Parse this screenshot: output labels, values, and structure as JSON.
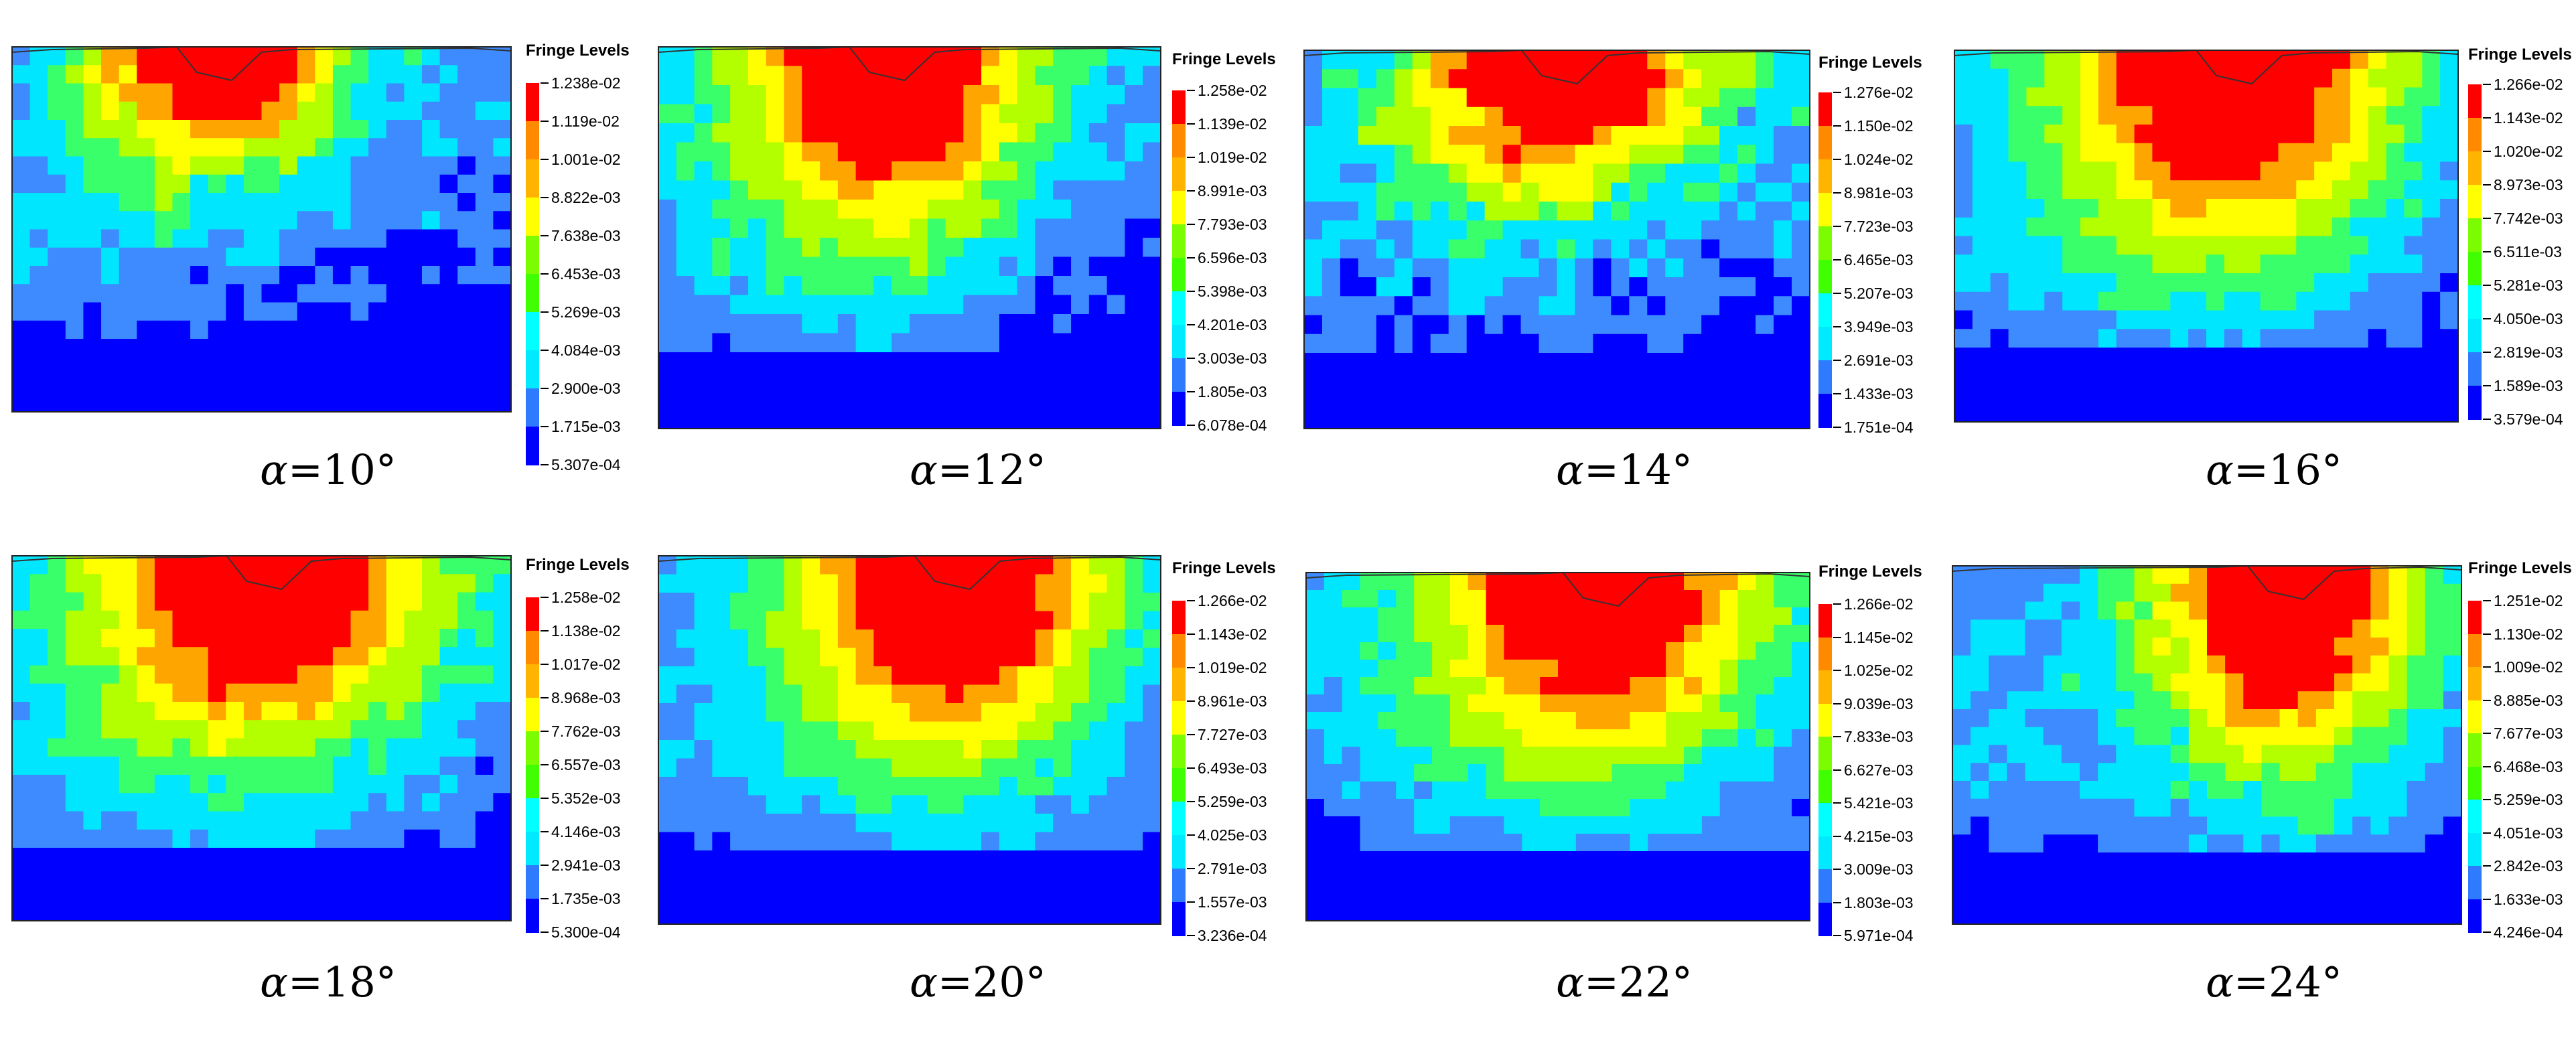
{
  "colors": {
    "fringe_scale": [
      "#0000ff",
      "#2f7bff",
      "#00eaff",
      "#00ffff",
      "#3fff00",
      "#7cfc00",
      "#ffff00",
      "#ffb400",
      "#ff8a00",
      "#ff0000"
    ],
    "palette_low_to_high": [
      "#0000ff",
      "#3d8bff",
      "#00e6ff",
      "#39ff6b",
      "#b3ff00",
      "#ffff00",
      "#ffa500",
      "#ff0000"
    ]
  },
  "legend_title": "Fringe Levels",
  "panels": [
    {
      "caption_symbol": "α",
      "caption_value": "=10°",
      "levels": [
        "1.238e-02",
        "1.119e-02",
        "1.001e-02",
        "8.822e-03",
        "7.638e-03",
        "6.453e-03",
        "5.269e-03",
        "4.084e-03",
        "2.900e-03",
        "1.715e-03",
        "5.307e-04"
      ],
      "seed": 11,
      "hot_center": 0.4,
      "hot_width": 0.24,
      "hot_depth": 0.34,
      "noise": 0.3
    },
    {
      "caption_symbol": "α",
      "caption_value": "=12°",
      "levels": [
        "1.258e-02",
        "1.139e-02",
        "1.019e-02",
        "8.991e-03",
        "7.793e-03",
        "6.596e-03",
        "5.398e-03",
        "4.201e-03",
        "3.003e-03",
        "1.805e-03",
        "6.078e-04"
      ],
      "seed": 23,
      "hot_center": 0.45,
      "hot_width": 0.28,
      "hot_depth": 0.55,
      "noise": 0.22
    },
    {
      "caption_symbol": "α",
      "caption_value": "=14°",
      "levels": [
        "1.276e-02",
        "1.150e-02",
        "1.024e-02",
        "8.981e-03",
        "7.723e-03",
        "6.465e-03",
        "5.207e-03",
        "3.949e-03",
        "2.691e-03",
        "1.433e-03",
        "1.751e-04"
      ],
      "seed": 37,
      "hot_center": 0.5,
      "hot_width": 0.3,
      "hot_depth": 0.4,
      "noise": 0.38
    },
    {
      "caption_symbol": "α",
      "caption_value": "=16°",
      "levels": [
        "1.266e-02",
        "1.143e-02",
        "1.020e-02",
        "8.973e-03",
        "7.742e-03",
        "6.511e-03",
        "5.281e-03",
        "4.050e-03",
        "2.819e-03",
        "1.589e-03",
        "3.579e-04"
      ],
      "seed": 41,
      "hot_center": 0.55,
      "hot_width": 0.32,
      "hot_depth": 0.62,
      "noise": 0.18
    },
    {
      "caption_symbol": "α",
      "caption_value": "=18°",
      "levels": [
        "1.258e-02",
        "1.138e-02",
        "1.017e-02",
        "8.968e-03",
        "7.762e-03",
        "6.557e-03",
        "5.352e-03",
        "4.146e-03",
        "2.941e-03",
        "1.735e-03",
        "5.300e-04"
      ],
      "seed": 53,
      "hot_center": 0.5,
      "hot_width": 0.34,
      "hot_depth": 0.58,
      "noise": 0.24
    },
    {
      "caption_symbol": "α",
      "caption_value": "=20°",
      "levels": [
        "1.266e-02",
        "1.143e-02",
        "1.019e-02",
        "8.961e-03",
        "7.727e-03",
        "6.493e-03",
        "5.259e-03",
        "4.025e-03",
        "2.791e-03",
        "1.557e-03",
        "3.236e-04"
      ],
      "seed": 67,
      "hot_center": 0.58,
      "hot_width": 0.3,
      "hot_depth": 0.64,
      "noise": 0.16
    },
    {
      "caption_symbol": "α",
      "caption_value": "=22°",
      "levels": [
        "1.266e-02",
        "1.145e-02",
        "1.025e-02",
        "9.039e-03",
        "7.833e-03",
        "6.627e-03",
        "5.421e-03",
        "4.215e-03",
        "3.009e-03",
        "1.803e-03",
        "5.971e-04"
      ],
      "seed": 79,
      "hot_center": 0.58,
      "hot_width": 0.32,
      "hot_depth": 0.62,
      "noise": 0.2
    },
    {
      "caption_symbol": "α",
      "caption_value": "=24°",
      "levels": [
        "1.251e-02",
        "1.130e-02",
        "1.009e-02",
        "8.885e-03",
        "7.677e-03",
        "6.468e-03",
        "5.259e-03",
        "4.051e-03",
        "2.842e-03",
        "1.633e-03",
        "4.246e-04"
      ],
      "seed": 97,
      "hot_center": 0.65,
      "hot_width": 0.26,
      "hot_depth": 0.62,
      "noise": 0.22
    }
  ]
}
